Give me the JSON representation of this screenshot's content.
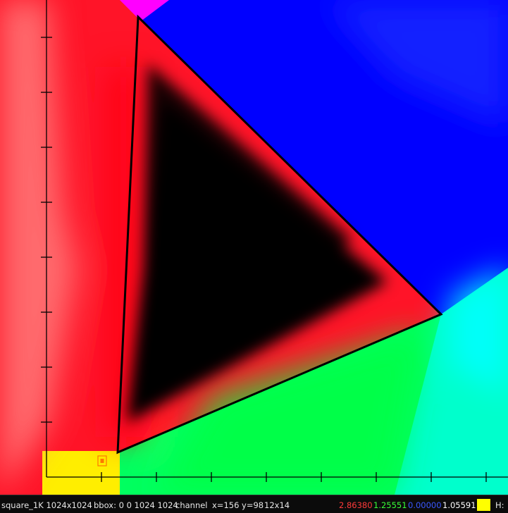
{
  "viewer": {
    "image_name": "square_1K",
    "resolution": "1024x1024",
    "bbox": "bbox: 0 0 1024 1024",
    "channel": "channel",
    "coords": "x=156 y=98",
    "sample_size": "12x14"
  },
  "pixel_values": {
    "r": "2.86380",
    "g": "1.25551",
    "b": "0.00000",
    "a": "1.05591",
    "r_color": "#ff3a3a",
    "g_color": "#38ff38",
    "b_color": "#3a58ff",
    "a_color": "#ffffff",
    "swatch_color": "#ffff00",
    "extra_label": "H:"
  },
  "overlay": {
    "triangle_color": "#000000",
    "axis_color": "#000000",
    "marker_color": "#ff7700"
  }
}
